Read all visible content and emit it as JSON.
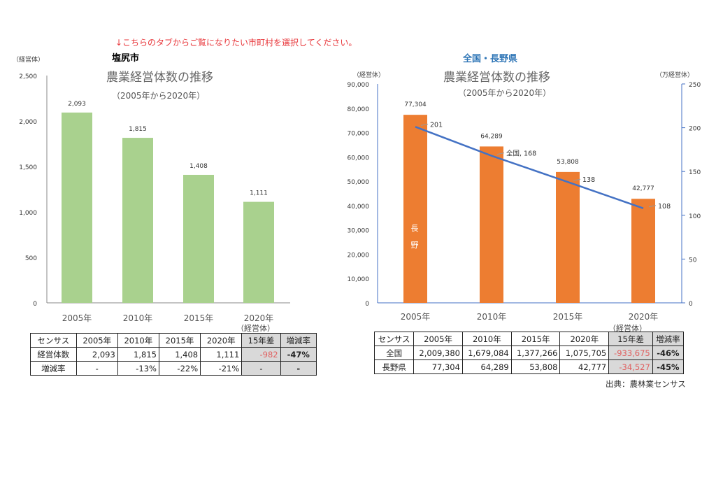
{
  "notice": "↓こちらのタブからご覧になりたい市町村を選択してください。",
  "chart_data": [
    {
      "type": "bar",
      "heading": "塩尻市",
      "title": "農業経営体数の推移",
      "subtitle": "（2005年から2020年）",
      "ylabel": "（経営体）",
      "categories": [
        "2005年",
        "2010年",
        "2015年",
        "2020年"
      ],
      "values": [
        2093,
        1815,
        1408,
        1111
      ],
      "data_labels": [
        "2,093",
        "1,815",
        "1,408",
        "1,111"
      ],
      "ylim": [
        0,
        2500
      ],
      "yticks": [
        "0",
        "500",
        "1,000",
        "1,500",
        "2,000",
        "2,500"
      ],
      "bar_color": "#a9d18e",
      "grid": false
    },
    {
      "type": "bar+line",
      "heading": "全国・長野県",
      "title": "農業経営体数の推移",
      "subtitle": "（2005年から2020年）",
      "ylabel": "（経営体）",
      "y2label": "（万経営体）",
      "categories": [
        "2005年",
        "2010年",
        "2015年",
        "2020年"
      ],
      "series": [
        {
          "name": "長野",
          "type": "bar",
          "values": [
            77304,
            64289,
            53808,
            42777
          ],
          "data_labels": [
            "77,304",
            "64,289",
            "53,808",
            "42,777"
          ],
          "color": "#ed7d31",
          "axis": "left"
        },
        {
          "name": "全国",
          "type": "line",
          "values": [
            201,
            168,
            138,
            108
          ],
          "data_labels": [
            "201",
            "全国, 168",
            "138",
            "108"
          ],
          "color": "#4472c4",
          "axis": "right"
        }
      ],
      "ylim": [
        0,
        90000
      ],
      "yticks": [
        "0",
        "10,000",
        "20,000",
        "30,000",
        "40,000",
        "50,000",
        "60,000",
        "70,000",
        "80,000",
        "90,000"
      ],
      "y2lim": [
        0,
        250
      ],
      "y2ticks": [
        "0",
        "50",
        "100",
        "150",
        "200",
        "250"
      ],
      "grid": false
    }
  ],
  "table_unit": "（経営体）",
  "left_table": {
    "header": [
      "センサス",
      "2005年",
      "2010年",
      "2015年",
      "2020年",
      "15年差",
      "増減率"
    ],
    "rows": [
      [
        "経営体数",
        "2,093",
        "1,815",
        "1,408",
        "1,111",
        "-982",
        "-47%"
      ],
      [
        "増減率",
        "-",
        "-13%",
        "-22%",
        "-21%",
        "-",
        "-"
      ]
    ]
  },
  "right_table": {
    "header": [
      "センサス",
      "2005年",
      "2010年",
      "2015年",
      "2020年",
      "15年差",
      "増減率"
    ],
    "rows": [
      [
        "全国",
        "2,009,380",
        "1,679,084",
        "1,377,266",
        "1,075,705",
        "-933,675",
        "-46%"
      ],
      [
        "長野県",
        "77,304",
        "64,289",
        "53,808",
        "42,777",
        "-34,527",
        "-45%"
      ]
    ]
  },
  "source": "出典：農林業センサス"
}
